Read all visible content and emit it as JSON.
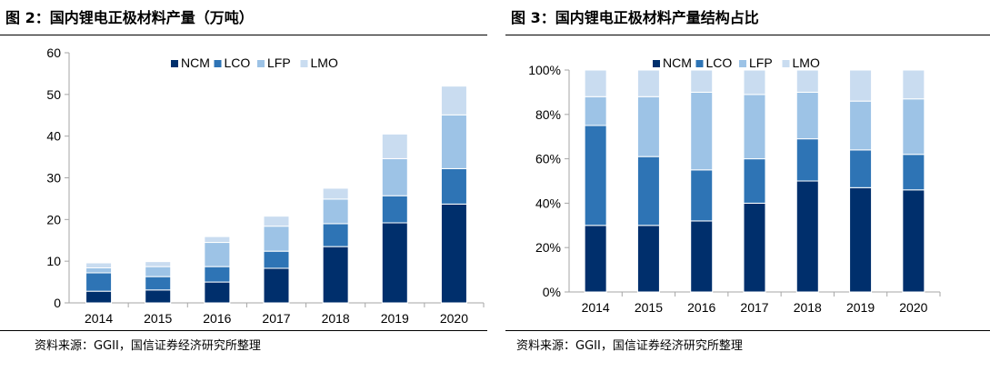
{
  "colors": {
    "NCM": "#002f6c",
    "LCO": "#2e74b5",
    "LFP": "#9dc3e6",
    "LMO": "#c9dcf0",
    "axis": "#a6a6a6"
  },
  "left": {
    "title": "图 2：国内锂电正极材料产量（万吨）",
    "source": "资料来源：GGII，国信证券经济研究所整理"
  },
  "right": {
    "title": "图 3：国内锂电正极材料产量结构占比",
    "source": "资料来源：GGII，国信证券经济研究所整理"
  },
  "chart_data": [
    {
      "type": "bar",
      "stacked": true,
      "title": "图 2：国内锂电正极材料产量（万吨）",
      "categories": [
        "2014",
        "2015",
        "2016",
        "2017",
        "2018",
        "2019",
        "2020"
      ],
      "series": [
        {
          "name": "NCM",
          "values": [
            2.8,
            3.1,
            5.0,
            8.3,
            13.5,
            19.2,
            23.7
          ]
        },
        {
          "name": "LCO",
          "values": [
            4.4,
            3.2,
            3.7,
            4.1,
            5.5,
            6.5,
            8.5
          ]
        },
        {
          "name": "LFP",
          "values": [
            1.2,
            2.4,
            5.8,
            6.0,
            5.9,
            8.9,
            12.9
          ]
        },
        {
          "name": "LMO",
          "values": [
            1.2,
            1.2,
            1.4,
            2.4,
            2.6,
            5.9,
            6.9
          ]
        }
      ],
      "ylim": [
        0,
        60
      ],
      "yticks": [
        "0",
        "10",
        "20",
        "30",
        "40",
        "50",
        "60"
      ],
      "legend": "top-center",
      "grid": false
    },
    {
      "type": "bar",
      "stacked": true,
      "title": "图 3：国内锂电正极材料产量结构占比",
      "categories": [
        "2014",
        "2015",
        "2016",
        "2017",
        "2018",
        "2019",
        "2020"
      ],
      "series": [
        {
          "name": "NCM",
          "values": [
            30,
            30,
            32,
            40,
            50,
            47,
            46
          ]
        },
        {
          "name": "LCO",
          "values": [
            45,
            31,
            23,
            20,
            19,
            17,
            16
          ]
        },
        {
          "name": "LFP",
          "values": [
            13,
            27,
            35,
            29,
            21,
            22,
            25
          ]
        },
        {
          "name": "LMO",
          "values": [
            12,
            12,
            10,
            11,
            10,
            14,
            13
          ]
        }
      ],
      "ylim": [
        0,
        100
      ],
      "yticks": [
        "0%",
        "20%",
        "40%",
        "60%",
        "80%",
        "100%"
      ],
      "legend": "top-center",
      "grid": false
    }
  ]
}
